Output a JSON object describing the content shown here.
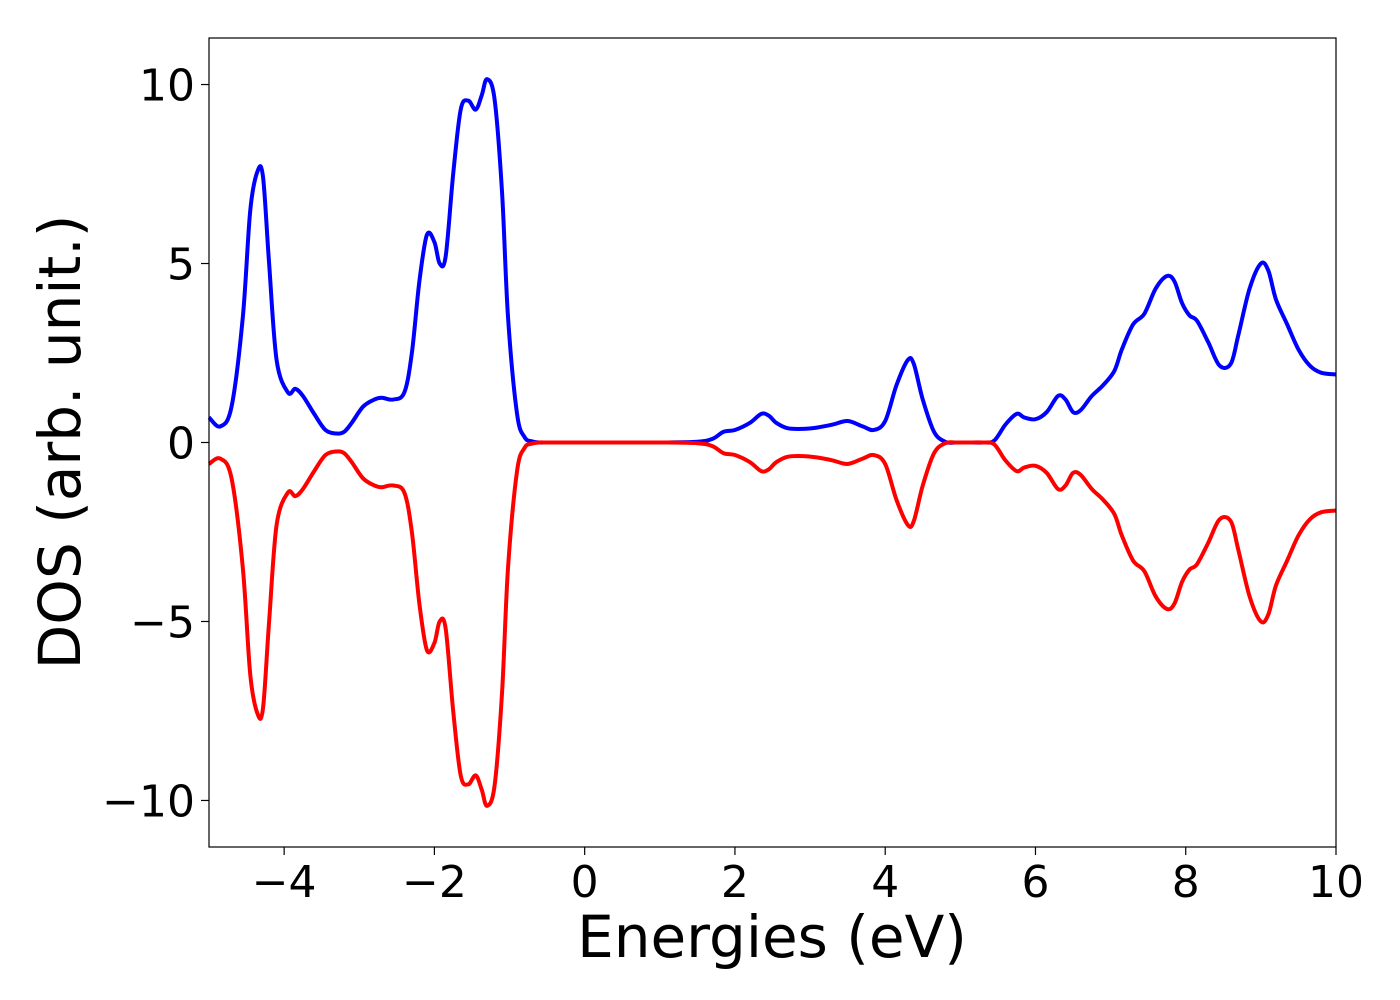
{
  "chart_data": {
    "type": "line",
    "title": "",
    "xlabel": "Energies (eV)",
    "ylabel": "DOS (arb. unit.)",
    "xlim": [
      -5,
      10
    ],
    "ylim": [
      -11.3,
      11.3
    ],
    "xticks": [
      -4,
      -2,
      0,
      2,
      4,
      6,
      8,
      10
    ],
    "xtick_labels": [
      "−4",
      "−2",
      "0",
      "2",
      "4",
      "6",
      "8",
      "10"
    ],
    "yticks": [
      -10,
      -5,
      0,
      5,
      10
    ],
    "ytick_labels": [
      "−10",
      "−5",
      "0",
      "5",
      "10"
    ],
    "grid": false,
    "legend": "none",
    "series": [
      {
        "color": "#0000ff",
        "x": [
          -5.0,
          -4.85,
          -4.7,
          -4.55,
          -4.45,
          -4.35,
          -4.28,
          -4.2,
          -4.1,
          -3.95,
          -3.85,
          -3.75,
          -3.6,
          -3.45,
          -3.3,
          -3.2,
          -3.1,
          -2.95,
          -2.8,
          -2.7,
          -2.55,
          -2.4,
          -2.3,
          -2.2,
          -2.1,
          -2.0,
          -1.93,
          -1.85,
          -1.75,
          -1.65,
          -1.55,
          -1.45,
          -1.37,
          -1.3,
          -1.2,
          -1.1,
          -1.02,
          -0.9,
          -0.8,
          -0.7,
          -0.6,
          -0.5,
          -0.3,
          0.0,
          0.5,
          1.0,
          1.5,
          1.7,
          1.85,
          2.0,
          2.2,
          2.35,
          2.45,
          2.55,
          2.7,
          2.9,
          3.1,
          3.3,
          3.5,
          3.7,
          3.85,
          4.0,
          4.15,
          4.3,
          4.38,
          4.5,
          4.65,
          4.8,
          4.95,
          5.1,
          5.3,
          5.45,
          5.6,
          5.75,
          5.85,
          6.0,
          6.15,
          6.3,
          6.4,
          6.5,
          6.6,
          6.75,
          6.9,
          7.05,
          7.15,
          7.3,
          7.45,
          7.6,
          7.75,
          7.85,
          7.95,
          8.05,
          8.15,
          8.3,
          8.45,
          8.6,
          8.7,
          8.85,
          9.0,
          9.1,
          9.2,
          9.35,
          9.5,
          9.65,
          9.8,
          10.0
        ],
        "y": [
          0.7,
          0.45,
          1.0,
          3.5,
          6.5,
          7.6,
          7.4,
          5.0,
          2.3,
          1.4,
          1.5,
          1.3,
          0.8,
          0.35,
          0.25,
          0.3,
          0.55,
          1.0,
          1.2,
          1.25,
          1.2,
          1.4,
          2.5,
          4.5,
          5.8,
          5.6,
          5.0,
          5.2,
          7.5,
          9.3,
          9.55,
          9.3,
          9.7,
          10.15,
          9.6,
          7.0,
          3.5,
          0.8,
          0.15,
          0.03,
          0.0,
          0.0,
          0.0,
          0.0,
          0.0,
          0.0,
          0.02,
          0.1,
          0.3,
          0.35,
          0.55,
          0.8,
          0.75,
          0.55,
          0.4,
          0.38,
          0.42,
          0.5,
          0.6,
          0.45,
          0.35,
          0.6,
          1.6,
          2.3,
          2.2,
          1.2,
          0.3,
          0.02,
          0.0,
          0.0,
          0.0,
          0.05,
          0.5,
          0.8,
          0.7,
          0.65,
          0.85,
          1.3,
          1.2,
          0.85,
          0.9,
          1.3,
          1.6,
          2.0,
          2.6,
          3.3,
          3.6,
          4.3,
          4.65,
          4.5,
          3.9,
          3.55,
          3.4,
          2.8,
          2.15,
          2.2,
          3.0,
          4.3,
          5.0,
          4.8,
          4.0,
          3.3,
          2.6,
          2.15,
          1.95,
          1.9
        ]
      },
      {
        "color": "#ff0000",
        "x": [
          -5.0,
          -4.85,
          -4.7,
          -4.55,
          -4.45,
          -4.35,
          -4.28,
          -4.2,
          -4.1,
          -3.95,
          -3.85,
          -3.75,
          -3.6,
          -3.45,
          -3.3,
          -3.2,
          -3.1,
          -2.95,
          -2.8,
          -2.7,
          -2.55,
          -2.4,
          -2.3,
          -2.2,
          -2.1,
          -2.0,
          -1.93,
          -1.85,
          -1.75,
          -1.65,
          -1.55,
          -1.45,
          -1.37,
          -1.3,
          -1.2,
          -1.1,
          -1.02,
          -0.9,
          -0.8,
          -0.7,
          -0.6,
          -0.5,
          -0.3,
          0.0,
          0.5,
          1.0,
          1.5,
          1.7,
          1.85,
          2.0,
          2.2,
          2.35,
          2.45,
          2.55,
          2.7,
          2.9,
          3.1,
          3.3,
          3.5,
          3.7,
          3.85,
          4.0,
          4.15,
          4.3,
          4.38,
          4.5,
          4.65,
          4.8,
          4.95,
          5.1,
          5.3,
          5.45,
          5.6,
          5.75,
          5.85,
          6.0,
          6.15,
          6.3,
          6.4,
          6.5,
          6.6,
          6.75,
          6.9,
          7.05,
          7.15,
          7.3,
          7.45,
          7.6,
          7.75,
          7.85,
          7.95,
          8.05,
          8.15,
          8.3,
          8.45,
          8.6,
          8.7,
          8.85,
          9.0,
          9.1,
          9.2,
          9.35,
          9.5,
          9.65,
          9.8,
          10.0
        ],
        "y": [
          -0.6,
          -0.45,
          -1.0,
          -3.5,
          -6.5,
          -7.6,
          -7.4,
          -5.0,
          -2.3,
          -1.4,
          -1.5,
          -1.3,
          -0.8,
          -0.35,
          -0.25,
          -0.3,
          -0.55,
          -1.0,
          -1.2,
          -1.25,
          -1.2,
          -1.4,
          -2.5,
          -4.5,
          -5.8,
          -5.6,
          -5.0,
          -5.2,
          -7.5,
          -9.3,
          -9.55,
          -9.3,
          -9.7,
          -10.15,
          -9.6,
          -7.0,
          -3.5,
          -0.8,
          -0.15,
          -0.03,
          0.0,
          0.0,
          0.0,
          0.0,
          0.0,
          0.0,
          -0.02,
          -0.1,
          -0.3,
          -0.35,
          -0.55,
          -0.8,
          -0.75,
          -0.55,
          -0.4,
          -0.38,
          -0.42,
          -0.5,
          -0.6,
          -0.45,
          -0.35,
          -0.6,
          -1.6,
          -2.3,
          -2.2,
          -1.2,
          -0.3,
          -0.02,
          0.0,
          0.0,
          0.0,
          -0.05,
          -0.5,
          -0.8,
          -0.7,
          -0.65,
          -0.85,
          -1.3,
          -1.2,
          -0.85,
          -0.9,
          -1.3,
          -1.6,
          -2.0,
          -2.6,
          -3.3,
          -3.6,
          -4.3,
          -4.65,
          -4.5,
          -3.9,
          -3.55,
          -3.4,
          -2.8,
          -2.15,
          -2.2,
          -3.0,
          -4.3,
          -5.0,
          -4.8,
          -4.0,
          -3.3,
          -2.6,
          -2.15,
          -1.95,
          -1.9
        ]
      }
    ]
  }
}
